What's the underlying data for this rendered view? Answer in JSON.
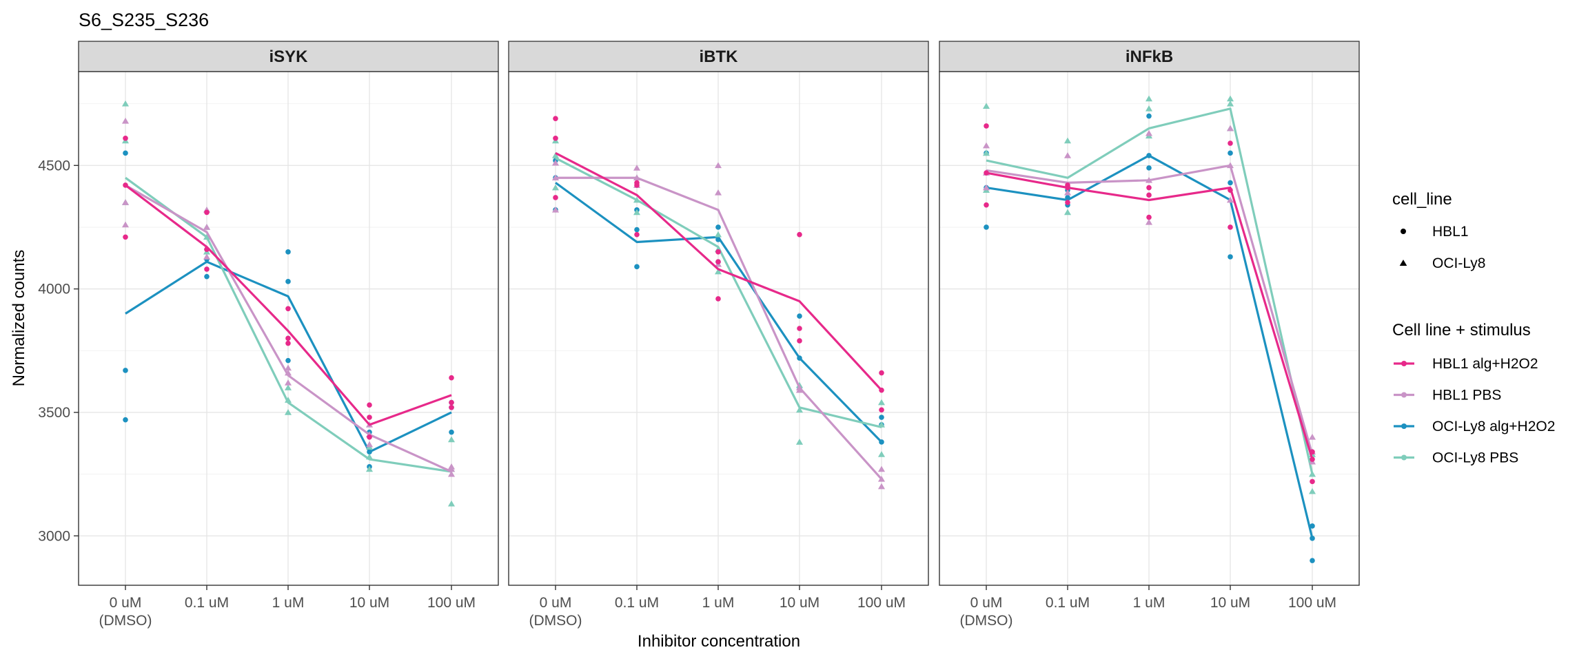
{
  "chart_data": {
    "type": "line",
    "title": "S6_S235_S236",
    "xlabel": "Inhibitor concentration",
    "ylabel": "Normalized counts",
    "categories": [
      [
        "0 uM",
        "(DMSO)"
      ],
      [
        "0.1 uM"
      ],
      [
        "1 uM"
      ],
      [
        "10 uM"
      ],
      [
        "100 uM"
      ]
    ],
    "ylim": [
      2800,
      4880
    ],
    "yticks": [
      3000,
      3500,
      4000,
      4500
    ],
    "grid": true,
    "legend_position": "right",
    "shape_legend": {
      "title": "cell_line",
      "items": [
        {
          "label": "HBL1",
          "shape": "circle"
        },
        {
          "label": "OCI-Ly8",
          "shape": "triangle"
        }
      ]
    },
    "color_legend": {
      "title": "Cell line + stimulus",
      "items": [
        {
          "label": "HBL1 alg+H2O2",
          "color": "#e7298a"
        },
        {
          "label": "HBL1 PBS",
          "color": "#c994c7"
        },
        {
          "label": "OCI-Ly8 alg+H2O2",
          "color": "#1c91c0"
        },
        {
          "label": "OCI-Ly8 PBS",
          "color": "#7fcdbb"
        }
      ]
    },
    "facets": [
      {
        "title": "iSYK",
        "series": [
          {
            "group": 2,
            "shape": "circle",
            "means": [
              3900,
              4110,
              3970,
              3340,
              3500
            ],
            "points": [
              [
                3470,
                3670,
                4550
              ],
              [
                4050,
                4120,
                4160
              ],
              [
                3710,
                4030,
                4150
              ],
              [
                3280,
                3340,
                3420
              ],
              [
                3420,
                3520,
                3540
              ]
            ]
          },
          {
            "group": 3,
            "shape": "triangle",
            "means": [
              4450,
              4210,
              3540,
              3310,
              3260
            ],
            "points": [
              [
                4350,
                4600,
                4750
              ],
              [
                4150,
                4210,
                4250
              ],
              [
                3500,
                3550,
                3600
              ],
              [
                3270,
                3320,
                3360
              ],
              [
                3130,
                3270,
                3390
              ]
            ]
          },
          {
            "group": 1,
            "shape": "triangle",
            "means": [
              4420,
              4230,
              3650,
              3410,
              3260
            ],
            "points": [
              [
                4260,
                4350,
                4680
              ],
              [
                4130,
                4250,
                4320
              ],
              [
                3620,
                3660,
                3680
              ],
              [
                3370,
                3410,
                3450
              ],
              [
                3250,
                3270,
                3280
              ]
            ]
          },
          {
            "group": 0,
            "shape": "circle",
            "means": [
              4420,
              4170,
              3830,
              3450,
              3570
            ],
            "points": [
              [
                4210,
                4420,
                4610
              ],
              [
                4080,
                4160,
                4310
              ],
              [
                3780,
                3800,
                3920
              ],
              [
                3400,
                3480,
                3530
              ],
              [
                3520,
                3540,
                3640
              ]
            ]
          }
        ]
      },
      {
        "title": "iBTK",
        "series": [
          {
            "group": 2,
            "shape": "circle",
            "means": [
              4430,
              4190,
              4210,
              3720,
              3380
            ],
            "points": [
              [
                4320,
                4450,
                4520
              ],
              [
                4090,
                4240,
                4320
              ],
              [
                4110,
                4200,
                4250
              ],
              [
                3600,
                3720,
                3890
              ],
              [
                3380,
                3450,
                3480
              ]
            ]
          },
          {
            "group": 3,
            "shape": "triangle",
            "means": [
              4530,
              4360,
              4170,
              3520,
              3440
            ],
            "points": [
              [
                4410,
                4540,
                4600
              ],
              [
                4310,
                4360,
                4450
              ],
              [
                4070,
                4160,
                4220
              ],
              [
                3380,
                3510,
                3610
              ],
              [
                3330,
                3450,
                3540
              ]
            ]
          },
          {
            "group": 1,
            "shape": "triangle",
            "means": [
              4450,
              4450,
              4320,
              3600,
              3230
            ],
            "points": [
              [
                4320,
                4450,
                4510
              ],
              [
                4420,
                4450,
                4490
              ],
              [
                4100,
                4390,
                4500
              ],
              [
                3590,
                3590,
                3600
              ],
              [
                3200,
                3230,
                3270
              ]
            ]
          },
          {
            "group": 0,
            "shape": "circle",
            "means": [
              4550,
              4380,
              4080,
              3950,
              3590
            ],
            "points": [
              [
                4370,
                4610,
                4690
              ],
              [
                4220,
                4420,
                4430
              ],
              [
                3960,
                4110,
                4150
              ],
              [
                3790,
                3840,
                4220
              ],
              [
                3510,
                3590,
                3660
              ]
            ]
          }
        ]
      },
      {
        "title": "iNFkB",
        "series": [
          {
            "group": 2,
            "shape": "circle",
            "means": [
              4410,
              4360,
              4540,
              4360,
              2990
            ],
            "points": [
              [
                4250,
                4410,
                4550
              ],
              [
                4340,
                4370,
                4400
              ],
              [
                4490,
                4540,
                4700
              ],
              [
                4130,
                4430,
                4550
              ],
              [
                2900,
                2990,
                3040
              ]
            ]
          },
          {
            "group": 3,
            "shape": "triangle",
            "means": [
              4520,
              4450,
              4650,
              4730,
              3250
            ],
            "points": [
              [
                4400,
                4550,
                4740
              ],
              [
                4310,
                4420,
                4600
              ],
              [
                4620,
                4730,
                4770
              ],
              [
                4650,
                4750,
                4770
              ],
              [
                3180,
                3250,
                3330
              ]
            ]
          },
          {
            "group": 1,
            "shape": "triangle",
            "means": [
              4480,
              4430,
              4440,
              4500,
              3330
            ],
            "points": [
              [
                4410,
                4470,
                4580
              ],
              [
                4390,
                4420,
                4540
              ],
              [
                4270,
                4440,
                4630
              ],
              [
                4360,
                4500,
                4650
              ],
              [
                3300,
                3340,
                3400
              ]
            ]
          },
          {
            "group": 0,
            "shape": "circle",
            "means": [
              4470,
              4410,
              4360,
              4410,
              3310
            ],
            "points": [
              [
                4340,
                4470,
                4660
              ],
              [
                4350,
                4410,
                4420
              ],
              [
                4290,
                4380,
                4410
              ],
              [
                4250,
                4400,
                4590
              ],
              [
                3220,
                3310,
                3340
              ]
            ]
          }
        ]
      }
    ]
  }
}
